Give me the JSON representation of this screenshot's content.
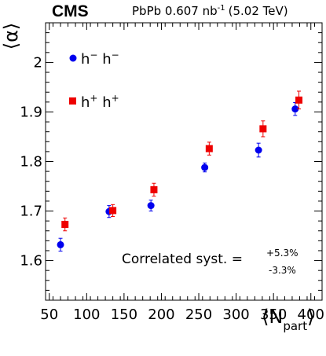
{
  "chart_data": {
    "type": "scatter",
    "header": {
      "experiment": "CMS",
      "lumi_prefix": "PbPb 0.607 nb",
      "lumi_exponent": "-1",
      "energy": "(5.02 TeV)"
    },
    "xlabel": "⟨N",
    "xlabel_sub": "part",
    "xlabel_close": "⟩",
    "ylabel": "⟨α⟩",
    "xlim": [
      45,
      415
    ],
    "ylim": [
      1.52,
      2.08
    ],
    "xticks": [
      50,
      100,
      150,
      200,
      250,
      300,
      350,
      400
    ],
    "yticks": [
      1.6,
      1.7,
      1.8,
      1.9,
      2.0
    ],
    "ytick_labels": [
      "1.6",
      "1.7",
      "1.8",
      "1.9",
      "2"
    ],
    "series": [
      {
        "name": "h− h−",
        "label_base": "h",
        "label_sup": "−",
        "marker": "circle",
        "color": "#0000ee",
        "x": [
          65,
          130,
          186,
          258,
          330,
          379
        ],
        "y": [
          1.632,
          1.699,
          1.711,
          1.788,
          1.823,
          1.906
        ],
        "yerr": [
          0.013,
          0.012,
          0.011,
          0.009,
          0.014,
          0.013
        ]
      },
      {
        "name": "h+ h+",
        "label_base": "h",
        "label_sup": "+",
        "marker": "square",
        "color": "#ee0000",
        "x": [
          71,
          135,
          190,
          264,
          336,
          384
        ],
        "y": [
          1.673,
          1.701,
          1.743,
          1.826,
          1.866,
          1.924
        ],
        "yerr": [
          0.013,
          0.012,
          0.013,
          0.013,
          0.016,
          0.018
        ]
      }
    ],
    "legend_position": "top-left",
    "annotation": {
      "text": "Correlated syst. =",
      "upper": "+5.3%",
      "lower": "-3.3%"
    }
  }
}
